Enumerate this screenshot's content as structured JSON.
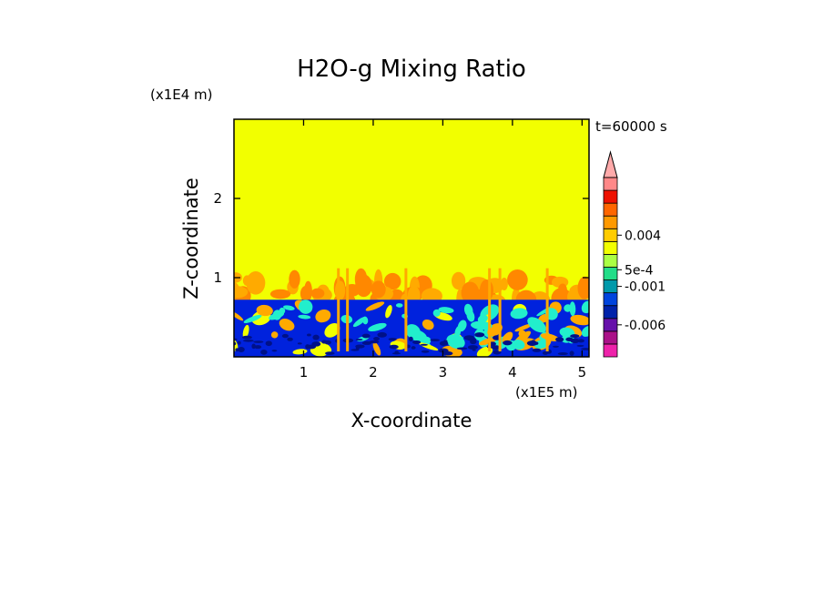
{
  "chart_data": {
    "type": "heatmap",
    "title": "H2O-g Mixing Ratio",
    "xlabel": "X-coordinate",
    "ylabel": "Z-coordinate",
    "x_unit": "(x1E5 m)",
    "y_unit": "(x1E4 m)",
    "time_label": "t=60000 s",
    "xlim": [
      0,
      5.1
    ],
    "ylim": [
      0,
      3
    ],
    "x_ticks": [
      1,
      2,
      3,
      4,
      5
    ],
    "y_ticks": [
      1,
      2
    ],
    "layers": {
      "surface_layer_top": 0.72,
      "mixed_layer_top": 1.05
    },
    "colorbar": {
      "colors": [
        "#ee22aa",
        "#aa1188",
        "#6611aa",
        "#0022aa",
        "#0044dd",
        "#0099aa",
        "#22dd88",
        "#aaff44",
        "#f2ff00",
        "#ffcc00",
        "#ff9900",
        "#ff6600",
        "#ee1100",
        "#ff8888"
      ],
      "labels": [
        {
          "text": "-0.006",
          "level": 2.5
        },
        {
          "text": "-0.001",
          "level": 5.5
        },
        {
          "text": "5e-4",
          "level": 6.8
        },
        {
          "text": "0.004",
          "level": 9.5
        }
      ],
      "extend_max": true
    },
    "colors": {
      "background_field": "#f2ff00",
      "orange": "#ffaa00",
      "dark_orange": "#ff8800",
      "cyan": "#22eecc",
      "blue": "#0022dd",
      "dark_blue": "#001188"
    }
  }
}
